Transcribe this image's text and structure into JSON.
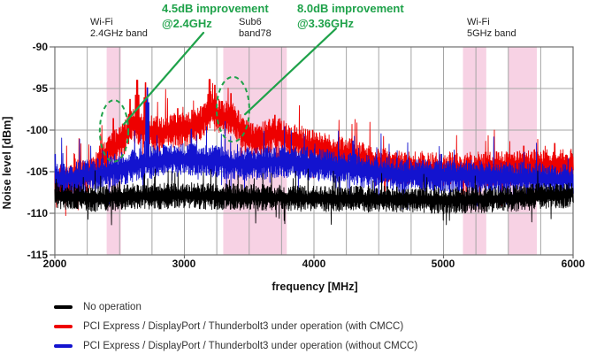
{
  "chart_data": {
    "type": "line",
    "title": "",
    "xlabel": "frequency [MHz]",
    "ylabel": "Noise level [dBm]",
    "xlim": [
      2000,
      6000
    ],
    "ylim": [
      -115,
      -90
    ],
    "x_tick_labels": [
      "2000",
      "3000",
      "4000",
      "5000",
      "6000"
    ],
    "y_tick_labels": [
      "-90",
      "-95",
      "-100",
      "-105",
      "-110",
      "-115"
    ],
    "x_grid_step_mhz": 250,
    "y_grid_step_db": 5,
    "grid": true,
    "legend_position": "below",
    "band_color": "#f7d2e4",
    "green_accent": "#1fa24a",
    "highlight_bands": [
      {
        "name": "Wi-Fi 2.4GHz band",
        "label_lines": [
          "Wi-Fi",
          "2.4GHz band"
        ],
        "from_mhz": 2400,
        "to_mhz": 2510
      },
      {
        "name": "Sub6 band78",
        "label_lines": [
          "Sub6",
          "band78"
        ],
        "from_mhz": 3300,
        "to_mhz": 3790
      },
      {
        "name": "Wi-Fi 5GHz band",
        "label_lines": [
          "Wi-Fi",
          "5GHz band"
        ],
        "from_mhz": 5150,
        "to_mhz": 5330
      },
      {
        "name": "Wi-Fi 5GHz band upper",
        "label_lines": [
          "",
          ""
        ],
        "from_mhz": 5500,
        "to_mhz": 5720
      }
    ],
    "annotations": [
      {
        "lines": [
          "4.5dB improvement",
          "@2.4GHz"
        ],
        "ellipse": {
          "f": 2457,
          "dbm": -100.1,
          "rf": 110,
          "rdb": 3.7
        },
        "arrow": {
          "f1": 3147,
          "dbm1": -88.3,
          "f2": 2532,
          "dbm2": -99.3
        }
      },
      {
        "lines": [
          "8.0dB improvement",
          "@3.36GHz"
        ],
        "ellipse": {
          "f": 3375,
          "dbm": -97.5,
          "rf": 126,
          "rdb": 3.9
        },
        "arrow": {
          "f1": 4170,
          "dbm1": -87.8,
          "f2": 3468,
          "dbm2": -98.1
        }
      }
    ],
    "series": [
      {
        "id": "no-operation",
        "name": "No operation",
        "color": "#000000",
        "z": 3,
        "noise_db": 1.5,
        "envelope_dbm": [
          [
            2000,
            -107.8
          ],
          [
            2300,
            -108.2
          ],
          [
            2600,
            -107.9
          ],
          [
            3000,
            -107.8
          ],
          [
            3500,
            -108.0
          ],
          [
            4000,
            -108.2
          ],
          [
            4500,
            -108.2
          ],
          [
            5000,
            -108.4
          ],
          [
            5500,
            -108.2
          ],
          [
            6000,
            -107.6
          ]
        ],
        "spikes": []
      },
      {
        "id": "with-cmcc",
        "name": "PCI Express / DisplayPort / Thunderbolt3 under operation (with CMCC)",
        "color": "#ee0000",
        "z": 1,
        "noise_db": 2.0,
        "envelope_dbm": [
          [
            2000,
            -106.3
          ],
          [
            2150,
            -106.0
          ],
          [
            2300,
            -104.8
          ],
          [
            2400,
            -102.6
          ],
          [
            2500,
            -101.6
          ],
          [
            2600,
            -99.3
          ],
          [
            2700,
            -100.0
          ],
          [
            2800,
            -100.4
          ],
          [
            2900,
            -99.9
          ],
          [
            3000,
            -99.9
          ],
          [
            3100,
            -99.4
          ],
          [
            3200,
            -97.7
          ],
          [
            3300,
            -98.4
          ],
          [
            3370,
            -98.2
          ],
          [
            3450,
            -100.5
          ],
          [
            3550,
            -101.3
          ],
          [
            3700,
            -100.4
          ],
          [
            3850,
            -101.2
          ],
          [
            4000,
            -102.0
          ],
          [
            4150,
            -102.7
          ],
          [
            4300,
            -103.0
          ],
          [
            4500,
            -104.0
          ],
          [
            4700,
            -104.4
          ],
          [
            5000,
            -104.6
          ],
          [
            5300,
            -104.6
          ],
          [
            5600,
            -104.4
          ],
          [
            6000,
            -104.1
          ]
        ],
        "spikes": [
          [
            2450,
            -98.6
          ],
          [
            2580,
            -96.3
          ],
          [
            2635,
            -94.0
          ],
          [
            2700,
            -94.3
          ],
          [
            2950,
            -97.4
          ],
          [
            3060,
            -97.6
          ],
          [
            3195,
            -93.9
          ],
          [
            3235,
            -94.6
          ],
          [
            3360,
            -95.6
          ],
          [
            3700,
            -98.2
          ],
          [
            5410,
            -102.6
          ],
          [
            5620,
            -101.9
          ],
          [
            5860,
            -101.6
          ]
        ]
      },
      {
        "id": "without-cmcc",
        "name": "PCI Express / DisplayPort / Thunderbolt3 under operation (without CMCC)",
        "color": "#1313cf",
        "z": 2,
        "noise_db": 1.9,
        "envelope_dbm": [
          [
            2000,
            -105.9
          ],
          [
            2200,
            -105.6
          ],
          [
            2400,
            -105.0
          ],
          [
            2600,
            -104.2
          ],
          [
            2800,
            -103.6
          ],
          [
            3000,
            -103.5
          ],
          [
            3200,
            -103.6
          ],
          [
            3400,
            -104.0
          ],
          [
            3600,
            -103.9
          ],
          [
            3800,
            -103.6
          ],
          [
            4000,
            -104.0
          ],
          [
            4200,
            -104.4
          ],
          [
            4400,
            -104.9
          ],
          [
            4700,
            -105.4
          ],
          [
            5000,
            -105.5
          ],
          [
            5300,
            -105.5
          ],
          [
            5600,
            -105.7
          ],
          [
            6000,
            -105.9
          ]
        ],
        "spikes": [
          [
            2004,
            -102.9
          ],
          [
            2715,
            -94.9
          ],
          [
            3052,
            -99.9
          ],
          [
            4300,
            -101.3
          ],
          [
            4985,
            -102.9
          ]
        ]
      }
    ]
  }
}
